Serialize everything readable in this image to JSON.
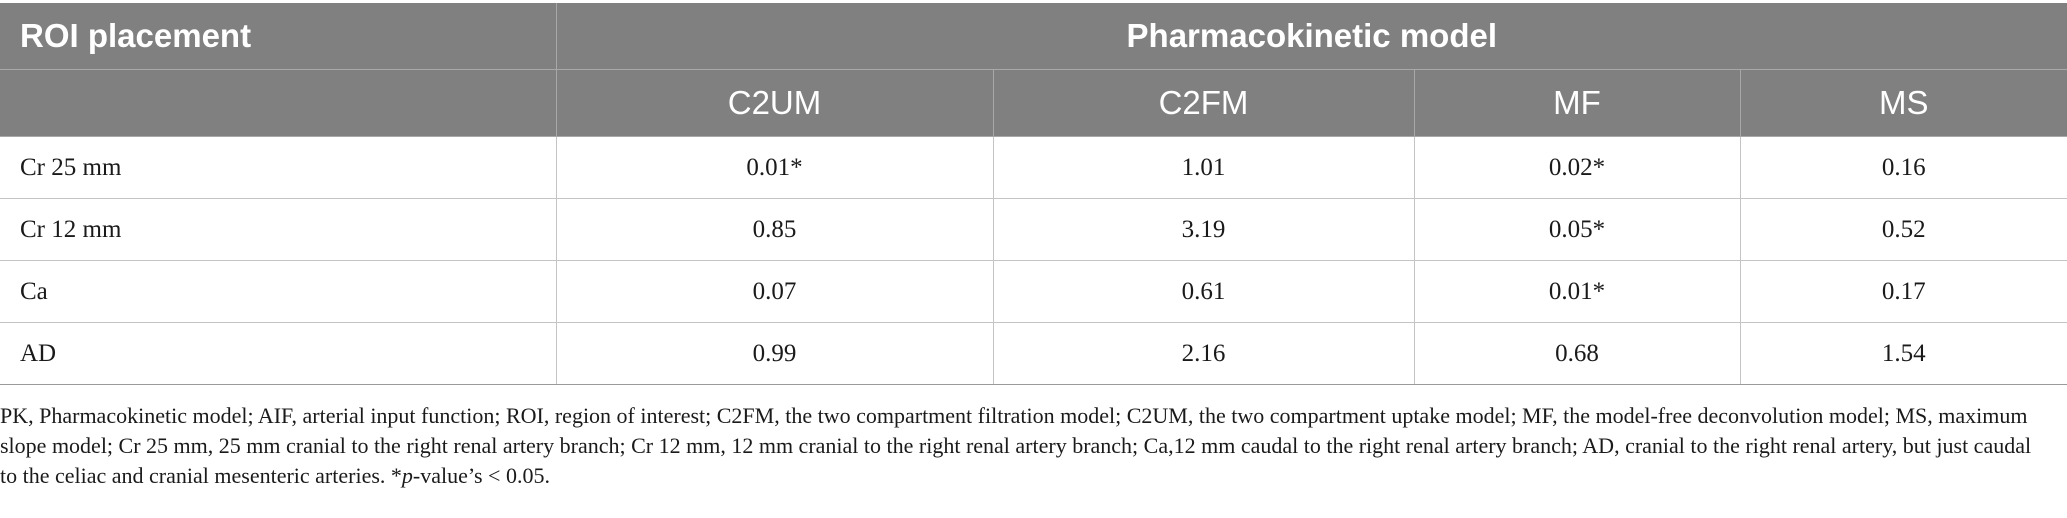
{
  "table": {
    "header": {
      "roi_label": "ROI placement",
      "pk_label": "Pharmacokinetic model",
      "models": [
        "C2UM",
        "C2FM",
        "MF",
        "MS"
      ]
    },
    "rows": [
      {
        "label": "Cr 25 mm",
        "values": [
          "0.01*",
          "1.01",
          "0.02*",
          "0.16"
        ]
      },
      {
        "label": "Cr 12 mm",
        "values": [
          "0.85",
          "3.19",
          "0.05*",
          "0.52"
        ]
      },
      {
        "label": "Ca",
        "values": [
          "0.07",
          "0.61",
          "0.01*",
          "0.17"
        ]
      },
      {
        "label": "AD",
        "values": [
          "0.99",
          "2.16",
          "0.68",
          "1.54"
        ]
      }
    ]
  },
  "footnote": {
    "main": "PK, Pharmacokinetic model; AIF, arterial input function; ROI, region of interest; C2FM, the two compartment filtration model; C2UM, the two compartment uptake model; MF, the model-free deconvolution model; MS, maximum slope model; Cr 25 mm, 25 mm cranial to the right renal artery branch; Cr 12 mm, 12 mm cranial to the right renal artery branch; Ca,12 mm caudal to the right renal artery branch; AD, cranial to the right renal artery, but just caudal to the celiac and cranial mesenteric arteries. *",
    "p_italic": "p",
    "tail": "-value’s < 0.05."
  }
}
